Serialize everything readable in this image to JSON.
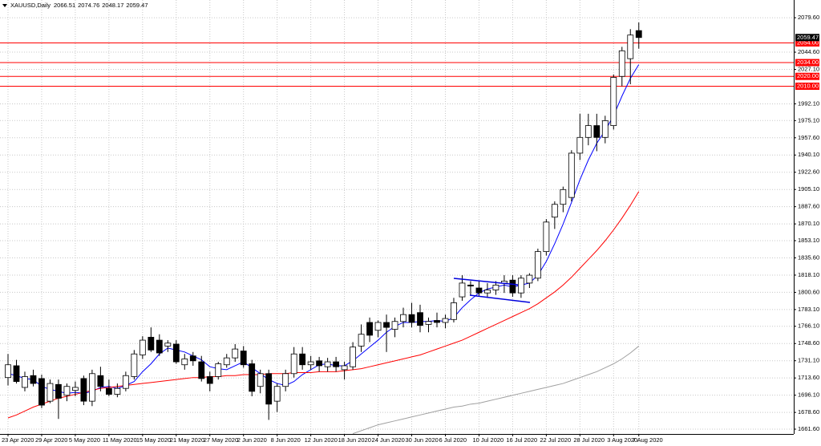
{
  "chart_data": {
    "type": "candlestick",
    "title": "XAUUSD,Daily",
    "categories": [
      "23 Apr 2020",
      null,
      null,
      null,
      "29 Apr 2020",
      null,
      null,
      null,
      "5 May 2020",
      null,
      null,
      null,
      "11 May 2020",
      null,
      null,
      null,
      "15 May 2020",
      null,
      null,
      null,
      "21 May 2020",
      null,
      null,
      null,
      "27 May 2020",
      null,
      null,
      null,
      "2 Jun 2020",
      null,
      null,
      null,
      "8 Jun 2020",
      null,
      null,
      null,
      "12 Jun 2020",
      null,
      null,
      null,
      "18 Jun 2020",
      null,
      null,
      null,
      "24 Jun 2020",
      null,
      null,
      null,
      "30 Jun 2020",
      null,
      null,
      null,
      "6 Jul 2020",
      null,
      null,
      null,
      "10 Jul 2020",
      null,
      null,
      null,
      "16 Jul 2020",
      null,
      null,
      null,
      "22 Jul 2020",
      null,
      null,
      null,
      "28 Jul 2020",
      null,
      null,
      null,
      "3 Aug 2020",
      null,
      null,
      "7 Aug 2020"
    ],
    "open": [
      1714,
      1726,
      1704,
      1716,
      1713,
      1690,
      1707,
      1696,
      1701,
      1713,
      1690,
      1716,
      1703,
      1697,
      1703,
      1715,
      1737,
      1755,
      1752,
      1746,
      1748,
      1727,
      1736,
      1730,
      1715,
      1715,
      1727,
      1734,
      1741,
      1728,
      1705,
      1718,
      1690,
      1705,
      1718,
      1738,
      1727,
      1731,
      1725,
      1730,
      1722,
      1725,
      1746,
      1770,
      1762,
      1770,
      1763,
      1771,
      1778,
      1780,
      1768,
      1772,
      1770,
      1773,
      1796,
      1808,
      1805,
      1800,
      1803,
      1810,
      1813,
      1800,
      1810,
      1815,
      1842,
      1877,
      1890,
      1897,
      1942,
      1958,
      1970,
      1958,
      1970,
      2020,
      2038,
      2066.51
    ],
    "high": [
      1738,
      1732,
      1720,
      1722,
      1717,
      1712,
      1712,
      1708,
      1710,
      1716,
      1722,
      1725,
      1712,
      1708,
      1720,
      1742,
      1756,
      1765,
      1758,
      1752,
      1752,
      1738,
      1740,
      1736,
      1720,
      1730,
      1738,
      1748,
      1746,
      1732,
      1722,
      1722,
      1708,
      1722,
      1745,
      1745,
      1736,
      1735,
      1734,
      1735,
      1730,
      1750,
      1768,
      1775,
      1772,
      1778,
      1775,
      1785,
      1790,
      1788,
      1775,
      1780,
      1778,
      1795,
      1818,
      1812,
      1812,
      1810,
      1812,
      1818,
      1818,
      1818,
      1820,
      1845,
      1875,
      1893,
      1908,
      1945,
      1982,
      1982,
      1982,
      1980,
      2022,
      2050,
      2068,
      2074.76
    ],
    "low": [
      1706,
      1708,
      1700,
      1705,
      1683,
      1688,
      1672,
      1690,
      1695,
      1686,
      1685,
      1700,
      1695,
      1694,
      1700,
      1712,
      1733,
      1740,
      1736,
      1740,
      1728,
      1722,
      1726,
      1710,
      1700,
      1712,
      1724,
      1730,
      1724,
      1695,
      1698,
      1671,
      1679,
      1700,
      1714,
      1722,
      1722,
      1720,
      1720,
      1720,
      1712,
      1722,
      1740,
      1750,
      1755,
      1740,
      1755,
      1765,
      1765,
      1760,
      1760,
      1765,
      1764,
      1770,
      1792,
      1798,
      1797,
      1795,
      1798,
      1800,
      1796,
      1795,
      1805,
      1812,
      1838,
      1865,
      1882,
      1893,
      1935,
      1950,
      1944,
      1952,
      1966,
      2010,
      2012,
      2048.17
    ],
    "close": [
      1727,
      1710,
      1715,
      1708,
      1686,
      1708,
      1693,
      1705,
      1704,
      1690,
      1718,
      1705,
      1697,
      1703,
      1716,
      1738,
      1752,
      1742,
      1739,
      1749,
      1730,
      1733,
      1731,
      1713,
      1708,
      1728,
      1734,
      1743,
      1727,
      1700,
      1718,
      1687,
      1705,
      1718,
      1738,
      1727,
      1730,
      1726,
      1730,
      1725,
      1726,
      1745,
      1758,
      1757,
      1770,
      1765,
      1771,
      1778,
      1770,
      1767,
      1771,
      1770,
      1774,
      1790,
      1810,
      1807,
      1800,
      1803,
      1808,
      1812,
      1800,
      1815,
      1818,
      1842,
      1872,
      1890,
      1905,
      1942,
      1958,
      1970,
      1958,
      1975,
      2019,
      2046,
      2062,
      2059.47
    ],
    "overlays": [
      {
        "color": "#0000ff",
        "values": [
          1718,
          1716,
          1713,
          1712,
          1705,
          1702,
          1700,
          1698,
          1699,
          1698,
          1700,
          1704,
          1705,
          1703,
          1706,
          1710,
          1720,
          1728,
          1738,
          1744,
          1742,
          1740,
          1736,
          1732,
          1725,
          1723,
          1722,
          1726,
          1730,
          1724,
          1718,
          1712,
          1708,
          1706,
          1710,
          1717,
          1722,
          1727,
          1728,
          1726,
          1726,
          1731,
          1738,
          1745,
          1752,
          1760,
          1766,
          1770,
          1770,
          1771,
          1771,
          1772,
          1771,
          1775,
          1785,
          1793,
          1800,
          1804,
          1806,
          1808,
          1806,
          1808,
          1810,
          1818,
          1832,
          1850,
          1870,
          1892,
          1915,
          1935,
          1952,
          1965,
          1980,
          2000,
          2018,
          2032
        ]
      },
      {
        "color": "#ff0000",
        "values": [
          1673,
          1676,
          1680,
          1684,
          1687,
          1690,
          1693,
          1695,
          1697,
          1699,
          1701,
          1703,
          1704,
          1705,
          1706,
          1707,
          1708,
          1709,
          1710,
          1711,
          1712,
          1713,
          1714,
          1714,
          1715,
          1715,
          1716,
          1716,
          1717,
          1717,
          1717,
          1718,
          1718,
          1718,
          1719,
          1719,
          1719,
          1720,
          1720,
          1720,
          1721,
          1722,
          1723,
          1725,
          1727,
          1729,
          1731,
          1733,
          1735,
          1737,
          1740,
          1743,
          1746,
          1749,
          1752,
          1756,
          1760,
          1764,
          1768,
          1772,
          1776,
          1780,
          1784,
          1789,
          1795,
          1801,
          1808,
          1816,
          1825,
          1834,
          1843,
          1853,
          1864,
          1876,
          1889,
          1903
        ]
      },
      {
        "color": "#a0a0a0",
        "values": [
          null,
          null,
          null,
          null,
          null,
          null,
          null,
          null,
          null,
          null,
          null,
          null,
          null,
          null,
          null,
          null,
          null,
          null,
          null,
          null,
          null,
          null,
          null,
          null,
          null,
          null,
          null,
          null,
          null,
          null,
          null,
          null,
          null,
          null,
          null,
          null,
          null,
          null,
          null,
          null,
          null,
          1657,
          1660,
          1663,
          1666,
          1668,
          1670,
          1672,
          1674,
          1676,
          1678,
          1680,
          1682,
          1684,
          1685,
          1687,
          1688,
          1690,
          1692,
          1694,
          1696,
          1698,
          1700,
          1702,
          1704,
          1706,
          1708,
          1711,
          1714,
          1717,
          1720,
          1724,
          1728,
          1733,
          1739,
          1746
        ]
      }
    ],
    "ylim": [
      1656.7,
      2097.6
    ],
    "yticks": [
      {
        "value": 2079.6,
        "label": "2079.60"
      },
      {
        "value": 2044.6,
        "label": "2044.60"
      },
      {
        "value": 2027.1,
        "label": "2027.10"
      },
      {
        "value": 1992.1,
        "label": "1992.10"
      },
      {
        "value": 1975.1,
        "label": "1975.10"
      },
      {
        "value": 1957.6,
        "label": "1957.60"
      },
      {
        "value": 1940.1,
        "label": "1940.10"
      },
      {
        "value": 1922.6,
        "label": "1922.60"
      },
      {
        "value": 1905.1,
        "label": "1905.10"
      },
      {
        "value": 1887.6,
        "label": "1887.60"
      },
      {
        "value": 1870.1,
        "label": "1870.10"
      },
      {
        "value": 1853.1,
        "label": "1853.10"
      },
      {
        "value": 1835.6,
        "label": "1835.60"
      },
      {
        "value": 1818.1,
        "label": "1818.10"
      },
      {
        "value": 1800.6,
        "label": "1800.60"
      },
      {
        "value": 1783.1,
        "label": "1783.10"
      },
      {
        "value": 1766.1,
        "label": "1766.10"
      },
      {
        "value": 1748.6,
        "label": "1748.60"
      },
      {
        "value": 1731.1,
        "label": "1731.10"
      },
      {
        "value": 1713.6,
        "label": "1713.60"
      },
      {
        "value": 1696.1,
        "label": "1696.10"
      },
      {
        "value": 1678.6,
        "label": "1678.60"
      },
      {
        "value": 1661.6,
        "label": "1661.60"
      }
    ],
    "levels": [
      {
        "value": 2054,
        "label": "2054.00"
      },
      {
        "value": 2034,
        "label": "2034.00"
      },
      {
        "value": 2020,
        "label": "2020.00"
      },
      {
        "value": 2010,
        "label": "2010.00"
      }
    ],
    "level_color": "#ff0000",
    "grid": true,
    "up_color": "#ffffff",
    "down_color": "#000000"
  }
}
